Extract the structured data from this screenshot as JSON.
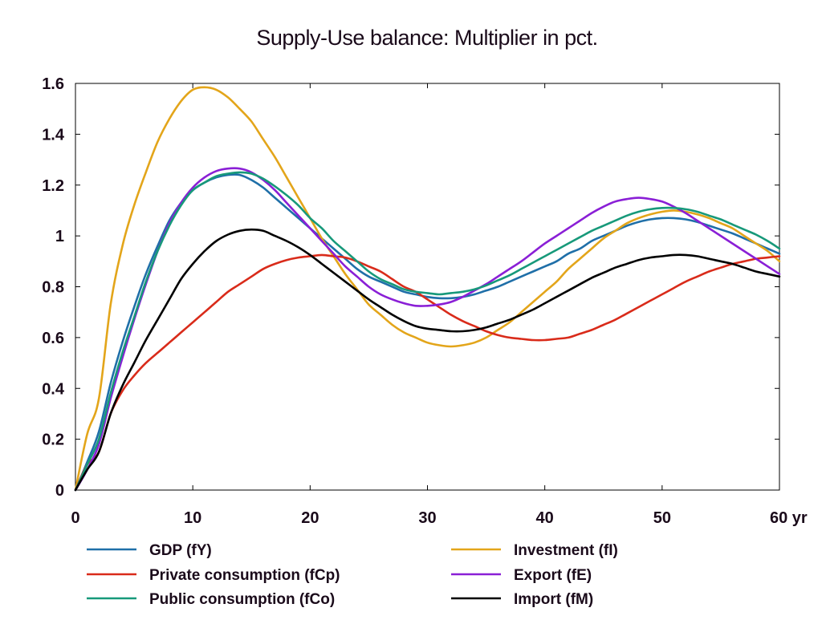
{
  "chart_data": {
    "type": "line",
    "title": "Supply-Use balance: Multiplier in pct.",
    "xlabel": "",
    "ylabel": "",
    "x_unit_label": "yr",
    "xlim": [
      0,
      60
    ],
    "ylim": [
      0,
      1.6
    ],
    "x_ticks": [
      0,
      10,
      20,
      30,
      40,
      50,
      60
    ],
    "y_ticks": [
      0,
      0.2,
      0.4,
      0.6,
      0.8,
      1,
      1.2,
      1.4,
      1.6
    ],
    "y_tick_labels": [
      "0",
      "0.2",
      "0.4",
      "0.6",
      "0.8",
      "1",
      "1.2",
      "1.4",
      "1.6"
    ],
    "grid": false,
    "legend_position": "bottom",
    "x": [
      0,
      1,
      2,
      3,
      4,
      5,
      6,
      7,
      8,
      9,
      10,
      11,
      12,
      13,
      14,
      15,
      16,
      17,
      18,
      19,
      20,
      21,
      22,
      23,
      24,
      25,
      26,
      27,
      28,
      29,
      30,
      31,
      32,
      33,
      34,
      35,
      36,
      37,
      38,
      39,
      40,
      41,
      42,
      43,
      44,
      45,
      46,
      47,
      48,
      49,
      50,
      51,
      52,
      53,
      54,
      55,
      56,
      57,
      58,
      59,
      60
    ],
    "series": [
      {
        "name": "GDP (fY)",
        "color": "#1f6fa8",
        "values": [
          0,
          0.11,
          0.23,
          0.42,
          0.58,
          0.72,
          0.85,
          0.96,
          1.06,
          1.13,
          1.18,
          1.21,
          1.23,
          1.24,
          1.24,
          1.22,
          1.19,
          1.15,
          1.11,
          1.07,
          1.03,
          0.99,
          0.95,
          0.91,
          0.87,
          0.84,
          0.82,
          0.8,
          0.78,
          0.77,
          0.76,
          0.755,
          0.755,
          0.76,
          0.77,
          0.785,
          0.8,
          0.82,
          0.84,
          0.86,
          0.88,
          0.9,
          0.93,
          0.95,
          0.98,
          1.0,
          1.02,
          1.04,
          1.055,
          1.065,
          1.07,
          1.07,
          1.065,
          1.055,
          1.04,
          1.025,
          1.01,
          0.99,
          0.97,
          0.95,
          0.93
        ]
      },
      {
        "name": "Investment (fI)",
        "color": "#e3a51a",
        "values": [
          0,
          0.22,
          0.36,
          0.73,
          0.96,
          1.12,
          1.25,
          1.37,
          1.46,
          1.53,
          1.575,
          1.585,
          1.575,
          1.545,
          1.5,
          1.45,
          1.38,
          1.31,
          1.23,
          1.15,
          1.07,
          0.99,
          0.92,
          0.85,
          0.79,
          0.73,
          0.69,
          0.65,
          0.62,
          0.6,
          0.58,
          0.57,
          0.565,
          0.57,
          0.58,
          0.6,
          0.63,
          0.66,
          0.7,
          0.74,
          0.78,
          0.82,
          0.87,
          0.91,
          0.95,
          0.99,
          1.02,
          1.05,
          1.07,
          1.085,
          1.095,
          1.1,
          1.095,
          1.085,
          1.07,
          1.05,
          1.03,
          1.0,
          0.97,
          0.94,
          0.9
        ]
      },
      {
        "name": "Private consumption (fCp)",
        "color": "#d92b1a",
        "values": [
          0,
          0.1,
          0.15,
          0.3,
          0.39,
          0.45,
          0.5,
          0.54,
          0.58,
          0.62,
          0.66,
          0.7,
          0.74,
          0.78,
          0.81,
          0.84,
          0.87,
          0.89,
          0.905,
          0.915,
          0.92,
          0.925,
          0.92,
          0.915,
          0.9,
          0.88,
          0.86,
          0.83,
          0.8,
          0.78,
          0.75,
          0.72,
          0.69,
          0.665,
          0.645,
          0.625,
          0.61,
          0.6,
          0.595,
          0.59,
          0.59,
          0.595,
          0.6,
          0.615,
          0.63,
          0.65,
          0.67,
          0.695,
          0.72,
          0.745,
          0.77,
          0.795,
          0.82,
          0.84,
          0.86,
          0.875,
          0.89,
          0.9,
          0.91,
          0.915,
          0.92
        ]
      },
      {
        "name": "Export (fE)",
        "color": "#8a1fd6",
        "values": [
          0,
          0.08,
          0.18,
          0.36,
          0.52,
          0.67,
          0.81,
          0.94,
          1.05,
          1.13,
          1.19,
          1.23,
          1.255,
          1.265,
          1.265,
          1.25,
          1.22,
          1.18,
          1.13,
          1.08,
          1.03,
          0.98,
          0.93,
          0.88,
          0.84,
          0.8,
          0.77,
          0.75,
          0.735,
          0.725,
          0.725,
          0.73,
          0.74,
          0.76,
          0.785,
          0.81,
          0.84,
          0.87,
          0.9,
          0.935,
          0.97,
          1.0,
          1.03,
          1.06,
          1.09,
          1.115,
          1.135,
          1.145,
          1.15,
          1.145,
          1.135,
          1.115,
          1.09,
          1.06,
          1.03,
          1.0,
          0.97,
          0.94,
          0.91,
          0.88,
          0.85
        ]
      },
      {
        "name": "Public consumption (fCo)",
        "color": "#17997a",
        "values": [
          0,
          0.1,
          0.2,
          0.38,
          0.54,
          0.68,
          0.82,
          0.94,
          1.04,
          1.12,
          1.18,
          1.21,
          1.235,
          1.245,
          1.25,
          1.245,
          1.225,
          1.195,
          1.16,
          1.12,
          1.07,
          1.03,
          0.98,
          0.94,
          0.9,
          0.86,
          0.83,
          0.81,
          0.79,
          0.78,
          0.775,
          0.77,
          0.775,
          0.78,
          0.79,
          0.805,
          0.825,
          0.845,
          0.87,
          0.895,
          0.92,
          0.945,
          0.97,
          0.995,
          1.02,
          1.04,
          1.06,
          1.08,
          1.095,
          1.105,
          1.11,
          1.11,
          1.105,
          1.095,
          1.08,
          1.065,
          1.045,
          1.025,
          1.005,
          0.98,
          0.95
        ]
      },
      {
        "name": "Import (fM)",
        "color": "#000000",
        "values": [
          0,
          0.08,
          0.15,
          0.3,
          0.41,
          0.5,
          0.59,
          0.67,
          0.75,
          0.83,
          0.89,
          0.94,
          0.98,
          1.005,
          1.02,
          1.025,
          1.02,
          1.0,
          0.98,
          0.955,
          0.925,
          0.89,
          0.855,
          0.82,
          0.785,
          0.75,
          0.72,
          0.69,
          0.665,
          0.645,
          0.635,
          0.63,
          0.625,
          0.625,
          0.63,
          0.64,
          0.655,
          0.67,
          0.69,
          0.71,
          0.735,
          0.76,
          0.785,
          0.81,
          0.835,
          0.855,
          0.875,
          0.89,
          0.905,
          0.915,
          0.92,
          0.925,
          0.925,
          0.92,
          0.91,
          0.9,
          0.89,
          0.875,
          0.86,
          0.85,
          0.84
        ]
      }
    ],
    "legend_order": [
      [
        "GDP (fY)",
        "Investment (fI)"
      ],
      [
        "Private consumption (fCp)",
        "Export (fE)"
      ],
      [
        "Public consumption (fCo)",
        "Import (fM)"
      ]
    ]
  }
}
